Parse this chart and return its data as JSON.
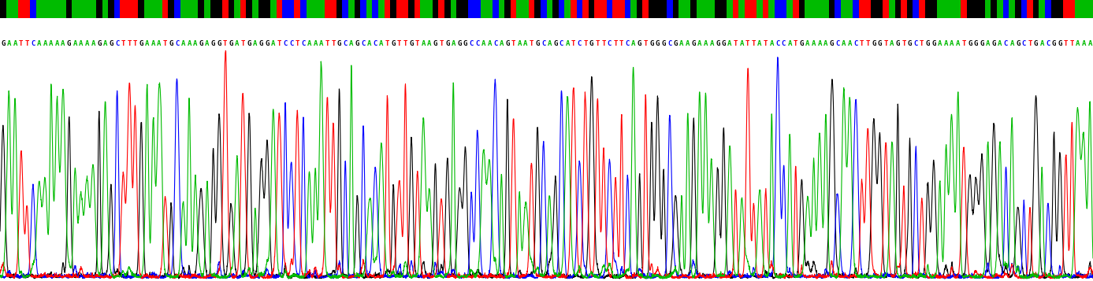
{
  "sequence": "GAATTCAAAAAGAAAAGAGCTTTGAAATGCAAAGAGGTGATGAGGATCCTCAAATTGCAGCACATGTTGTAAGTGAGGCCAACAGTAATGCAGCATCTGTTCTTCAGTGGGCGAAGAAAGGATATTATACCATGAAAAGCAACTTGGTAGTGCTGGAAAATGGGAGACAGCTGACGGTTAAA",
  "base_colors": {
    "A": "#00bb00",
    "T": "#ff0000",
    "G": "#000000",
    "C": "#0000ff"
  },
  "colorbar_colors": {
    "A": "#00bb00",
    "T": "#ff0000",
    "G": "#000000",
    "C": "#0000ff"
  },
  "bg_color": "#ffffff",
  "trace_linewidth": 0.8,
  "fig_width": 13.87,
  "fig_height": 3.57,
  "dpi": 100,
  "sequence_fontsize": 6.5,
  "noise_level": 0.008,
  "baseline_noise": 0.015
}
